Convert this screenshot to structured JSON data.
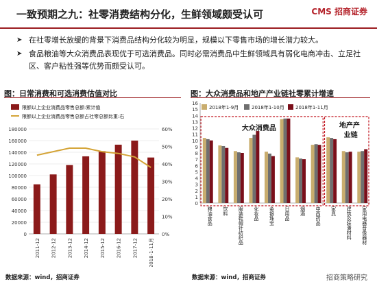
{
  "header": {
    "title": "一致预期之九：社零消费结构分化，生鲜领域颇受认可",
    "logo": "CMS 招商证券"
  },
  "bullets": [
    "在社零增长放缓的背景下消费品结构分化较为明显，规模以下零售市场的增长潜力较大。",
    "食品粮油等大众消费品表现优于可选消费品。同时必需消费品中生鲜领域具有弱化电商冲击、立足社区、客户粘性强等优势而颇受认可。"
  ],
  "left_figure": {
    "title": "图：日常消费和可选消费估值对比",
    "source": "数据来源：wind，招商证券"
  },
  "right_figure": {
    "title": "图：大众消费品和地产产业链社零累计增速",
    "source": "数据来源：wind，招商证券",
    "box1_label": "大众消费品",
    "box2_label_line1": "地产产",
    "box2_label_line2": "业链"
  },
  "watermark": "招商策略研究",
  "colors": {
    "brand_red": "#9b1b1f",
    "bar_dark": "#8b1a1a",
    "line_gold": "#d4a437",
    "series1": "#c9ad6e",
    "series2": "#6f6f6f",
    "series3": "#7a0f1a"
  },
  "chart_data": [
    {
      "type": "bar",
      "categories": [
        "2011-12",
        "2012-12",
        "2013-12",
        "2014-12",
        "2015-12",
        "2016-12",
        "2017-12",
        "2018-1-11月"
      ],
      "series": [
        {
          "name": "限额以上企业消费品零售总额:累计值",
          "type": "bar",
          "axis": "left",
          "values": [
            85000,
            102000,
            118000,
            133000,
            142000,
            153000,
            160000,
            131000
          ]
        },
        {
          "name": "限额以上企业消费品零售总额占社零总额比重:右",
          "type": "line",
          "axis": "right",
          "values": [
            45,
            47,
            49,
            49,
            47,
            46,
            44,
            38
          ]
        }
      ],
      "yticks_left": [
        "0",
        "20000",
        "40000",
        "60000",
        "80000",
        "100000",
        "120000",
        "140000",
        "160000",
        "180000"
      ],
      "yticks_right": [
        "0%",
        "10%",
        "20%",
        "30%",
        "40%",
        "50%",
        "60%"
      ],
      "ylim_left": [
        0,
        180000
      ],
      "ylim_right": [
        0,
        60
      ],
      "grid": true
    },
    {
      "type": "bar",
      "categories": [
        "粮油食品",
        "饮料",
        "服装鞋帽针纺织品",
        "化妆品",
        "金银珠宝",
        "日用品",
        "烟酒",
        "中西药品",
        "家具",
        "建筑及装潢材料",
        "家用电器音像器材"
      ],
      "series": [
        {
          "name": "2018年1-9月",
          "values": [
            10.4,
            9.2,
            8.3,
            10.4,
            8.2,
            13.4,
            7.3,
            9.3,
            10.5,
            8.3,
            8.2
          ]
        },
        {
          "name": "2018年1-10月",
          "values": [
            10.2,
            9.1,
            8.1,
            10.9,
            7.9,
            13.5,
            7.1,
            9.4,
            10.4,
            8.1,
            8.3
          ]
        },
        {
          "name": "2018年1-11月",
          "values": [
            10.0,
            8.8,
            8.0,
            11.5,
            7.5,
            13.5,
            7.0,
            9.3,
            10.2,
            8.2,
            8.6
          ]
        }
      ],
      "yticks": [
        "0",
        "1",
        "2",
        "3",
        "4",
        "5",
        "6",
        "7",
        "8",
        "9",
        "10",
        "11",
        "12",
        "13",
        "14",
        "15",
        "16"
      ],
      "ylim": [
        0,
        16
      ],
      "grid": false,
      "legend": "top"
    }
  ]
}
